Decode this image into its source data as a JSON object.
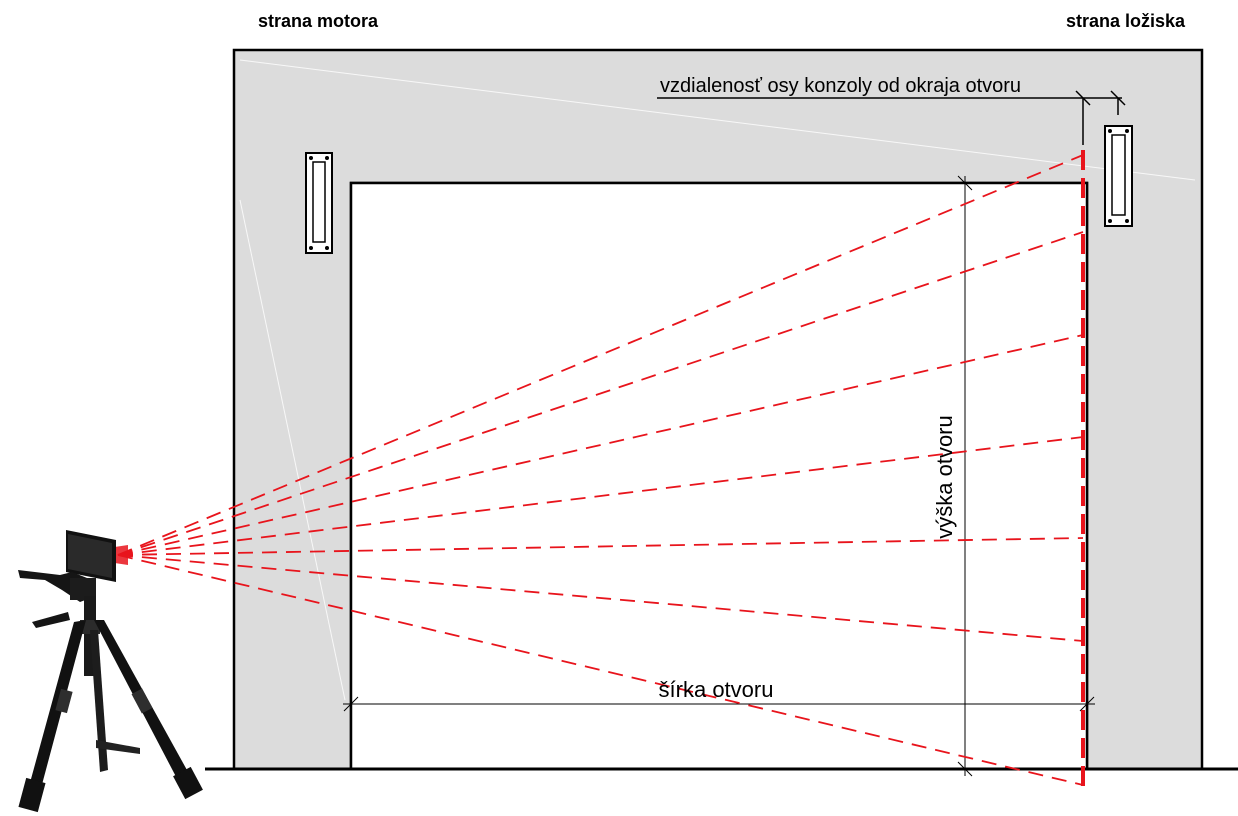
{
  "labels": {
    "motor_side": "strana motora",
    "bearing_side": "strana ložiska",
    "bracket_axis_distance": "vzdialenosť osy konzoly od okraja otvoru",
    "opening_height": "výška otvoru",
    "opening_width": "šírka otvoru"
  },
  "colors": {
    "wall_fill": "#dcdcdc",
    "laser_red": "#e8141c",
    "line": "#000000"
  },
  "icons": {
    "laser_device": "laser-level-on-tripod",
    "bracket": "mounting-bracket"
  }
}
